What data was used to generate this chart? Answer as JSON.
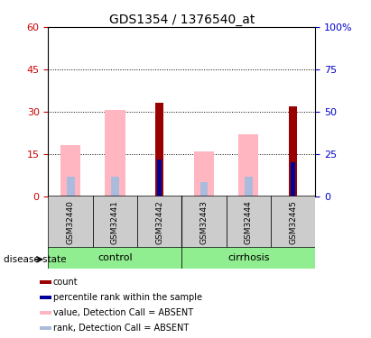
{
  "title": "GDS1354 / 1376540_at",
  "samples": [
    "GSM32440",
    "GSM32441",
    "GSM32442",
    "GSM32443",
    "GSM32444",
    "GSM32445"
  ],
  "left_ylim": [
    0,
    60
  ],
  "right_ylim": [
    0,
    100
  ],
  "left_yticks": [
    0,
    15,
    30,
    45,
    60
  ],
  "right_yticks": [
    0,
    25,
    50,
    75,
    100
  ],
  "right_yticklabels": [
    "0",
    "25",
    "50",
    "75",
    "100%"
  ],
  "count_values": [
    0,
    0,
    33,
    0,
    0,
    32
  ],
  "percentile_values": [
    0,
    0,
    13,
    0,
    0,
    12
  ],
  "value_absent": [
    18,
    30.5,
    0,
    16,
    22,
    0
  ],
  "rank_absent": [
    7,
    7,
    0,
    5,
    7,
    0
  ],
  "count_color": "#990000",
  "percentile_color": "#000099",
  "value_absent_color": "#FFB6C1",
  "rank_absent_color": "#AABBDD",
  "left_axis_color": "#CC0000",
  "right_axis_color": "#0000CC",
  "sample_box_color": "#CCCCCC",
  "group_box_color": "#90EE90",
  "legend_items": [
    {
      "color": "#990000",
      "label": "count"
    },
    {
      "color": "#000099",
      "label": "percentile rank within the sample"
    },
    {
      "color": "#FFB6C1",
      "label": "value, Detection Call = ABSENT"
    },
    {
      "color": "#AABBDD",
      "label": "rank, Detection Call = ABSENT"
    }
  ]
}
